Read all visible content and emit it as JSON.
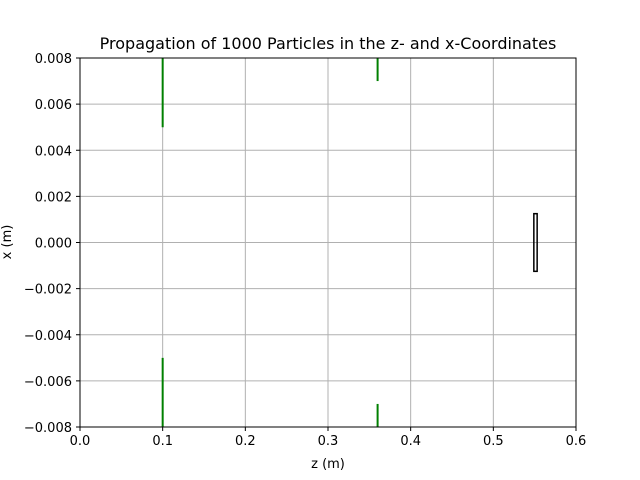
{
  "chart_data": {
    "type": "line",
    "title": "Propagation of 1000 Particles in the z- and x-Coordinates",
    "xlabel": "z (m)",
    "ylabel": "x (m)",
    "xlim": [
      0.0,
      0.6
    ],
    "ylim": [
      -0.008,
      0.008
    ],
    "grid": true,
    "x_ticks": [
      "0.0",
      "0.1",
      "0.2",
      "0.3",
      "0.4",
      "0.5",
      "0.6"
    ],
    "x_tick_values": [
      0.0,
      0.1,
      0.2,
      0.3,
      0.4,
      0.5,
      0.6
    ],
    "y_ticks": [
      "−0.008",
      "−0.006",
      "−0.004",
      "−0.002",
      "0.000",
      "0.002",
      "0.004",
      "0.006",
      "0.008"
    ],
    "y_tick_values": [
      -0.008,
      -0.006,
      -0.004,
      -0.002,
      0.0,
      0.002,
      0.004,
      0.006,
      0.008
    ],
    "segments": [
      {
        "color": "#008000",
        "x": [
          0.1,
          0.1
        ],
        "y": [
          0.005,
          0.008
        ]
      },
      {
        "color": "#008000",
        "x": [
          0.1,
          0.1
        ],
        "y": [
          -0.005,
          -0.008
        ]
      },
      {
        "color": "#008000",
        "x": [
          0.36,
          0.36
        ],
        "y": [
          0.007,
          0.008
        ]
      },
      {
        "color": "#008000",
        "x": [
          0.36,
          0.36
        ],
        "y": [
          -0.007,
          -0.008
        ]
      }
    ],
    "rectangles": [
      {
        "color": "#000000",
        "x": [
          0.549,
          0.553
        ],
        "y": [
          -0.00125,
          0.00125
        ]
      }
    ]
  }
}
